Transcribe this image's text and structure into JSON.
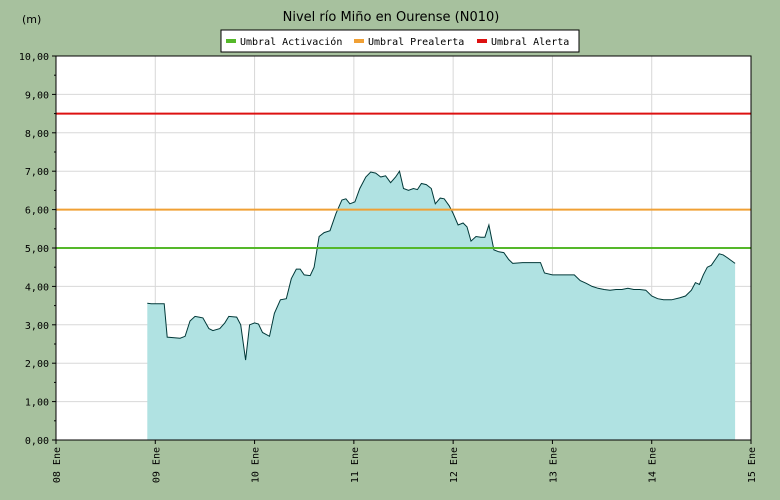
{
  "chart_data": {
    "type": "area",
    "title": "Nivel río Miño en Ourense  (N010)",
    "ylabel": "(m)",
    "ylim": [
      0,
      10
    ],
    "yticks": [
      "0,00",
      "1,00",
      "2,00",
      "3,00",
      "4,00",
      "5,00",
      "6,00",
      "7,00",
      "8,00",
      "9,00",
      "10,00"
    ],
    "x_range_days": [
      8,
      15
    ],
    "xticks": [
      {
        "day": 8,
        "label": "08 Ene"
      },
      {
        "day": 9,
        "label": "09 Ene"
      },
      {
        "day": 10,
        "label": "10 Ene"
      },
      {
        "day": 11,
        "label": "11 Ene"
      },
      {
        "day": 12,
        "label": "12 Ene"
      },
      {
        "day": 13,
        "label": "13 Ene"
      },
      {
        "day": 14,
        "label": "14 Ene"
      },
      {
        "day": 15,
        "label": "15 Ene"
      }
    ],
    "grid": true,
    "legend_position": "top-center",
    "thresholds": [
      {
        "name": "Umbral Activación",
        "value": 5.0,
        "color": "#55b82a"
      },
      {
        "name": "Umbral Prealerta",
        "value": 6.0,
        "color": "#f0a035"
      },
      {
        "name": "Umbral Alerta",
        "value": 8.5,
        "color": "#dd1111"
      }
    ],
    "series": [
      {
        "fill_color": "#b0e2e2",
        "line_color": "#003838",
        "points": [
          [
            8.92,
            3.56
          ],
          [
            8.96,
            3.55
          ],
          [
            9.09,
            3.55
          ],
          [
            9.12,
            2.68
          ],
          [
            9.25,
            2.65
          ],
          [
            9.3,
            2.7
          ],
          [
            9.35,
            3.1
          ],
          [
            9.4,
            3.22
          ],
          [
            9.44,
            3.2
          ],
          [
            9.48,
            3.18
          ],
          [
            9.54,
            2.9
          ],
          [
            9.58,
            2.85
          ],
          [
            9.65,
            2.9
          ],
          [
            9.7,
            3.05
          ],
          [
            9.74,
            3.22
          ],
          [
            9.82,
            3.2
          ],
          [
            9.86,
            3.0
          ],
          [
            9.91,
            2.08
          ],
          [
            9.95,
            3.0
          ],
          [
            10.0,
            3.05
          ],
          [
            10.04,
            3.02
          ],
          [
            10.08,
            2.8
          ],
          [
            10.15,
            2.7
          ],
          [
            10.2,
            3.3
          ],
          [
            10.26,
            3.65
          ],
          [
            10.32,
            3.68
          ],
          [
            10.37,
            4.2
          ],
          [
            10.42,
            4.45
          ],
          [
            10.46,
            4.45
          ],
          [
            10.5,
            4.3
          ],
          [
            10.56,
            4.28
          ],
          [
            10.6,
            4.5
          ],
          [
            10.65,
            5.3
          ],
          [
            10.7,
            5.4
          ],
          [
            10.76,
            5.45
          ],
          [
            10.82,
            5.9
          ],
          [
            10.88,
            6.25
          ],
          [
            10.92,
            6.28
          ],
          [
            10.96,
            6.15
          ],
          [
            11.01,
            6.2
          ],
          [
            11.06,
            6.55
          ],
          [
            11.12,
            6.85
          ],
          [
            11.17,
            6.98
          ],
          [
            11.22,
            6.95
          ],
          [
            11.27,
            6.85
          ],
          [
            11.32,
            6.88
          ],
          [
            11.37,
            6.7
          ],
          [
            11.42,
            6.85
          ],
          [
            11.46,
            7.0
          ],
          [
            11.5,
            6.55
          ],
          [
            11.55,
            6.5
          ],
          [
            11.6,
            6.55
          ],
          [
            11.64,
            6.52
          ],
          [
            11.68,
            6.68
          ],
          [
            11.73,
            6.65
          ],
          [
            11.78,
            6.55
          ],
          [
            11.82,
            6.15
          ],
          [
            11.87,
            6.3
          ],
          [
            11.91,
            6.28
          ],
          [
            11.96,
            6.1
          ],
          [
            12.0,
            5.9
          ],
          [
            12.05,
            5.6
          ],
          [
            12.1,
            5.65
          ],
          [
            12.14,
            5.55
          ],
          [
            12.18,
            5.18
          ],
          [
            12.23,
            5.3
          ],
          [
            12.28,
            5.28
          ],
          [
            12.32,
            5.28
          ],
          [
            12.36,
            5.6
          ],
          [
            12.41,
            4.95
          ],
          [
            12.46,
            4.9
          ],
          [
            12.51,
            4.88
          ],
          [
            12.56,
            4.7
          ],
          [
            12.6,
            4.6
          ],
          [
            12.7,
            4.62
          ],
          [
            12.8,
            4.62
          ],
          [
            12.88,
            4.62
          ],
          [
            12.92,
            4.35
          ],
          [
            13.0,
            4.3
          ],
          [
            13.1,
            4.3
          ],
          [
            13.22,
            4.3
          ],
          [
            13.28,
            4.15
          ],
          [
            13.34,
            4.08
          ],
          [
            13.4,
            4.0
          ],
          [
            13.46,
            3.95
          ],
          [
            13.52,
            3.92
          ],
          [
            13.58,
            3.9
          ],
          [
            13.64,
            3.92
          ],
          [
            13.7,
            3.92
          ],
          [
            13.76,
            3.95
          ],
          [
            13.82,
            3.92
          ],
          [
            13.88,
            3.92
          ],
          [
            13.94,
            3.9
          ],
          [
            14.0,
            3.75
          ],
          [
            14.06,
            3.68
          ],
          [
            14.12,
            3.65
          ],
          [
            14.2,
            3.65
          ],
          [
            14.28,
            3.7
          ],
          [
            14.34,
            3.75
          ],
          [
            14.4,
            3.9
          ],
          [
            14.44,
            4.1
          ],
          [
            14.48,
            4.05
          ],
          [
            14.52,
            4.3
          ],
          [
            14.56,
            4.5
          ],
          [
            14.6,
            4.55
          ],
          [
            14.64,
            4.7
          ],
          [
            14.68,
            4.85
          ],
          [
            14.72,
            4.82
          ],
          [
            14.76,
            4.75
          ],
          [
            14.84,
            4.6
          ]
        ]
      }
    ]
  }
}
